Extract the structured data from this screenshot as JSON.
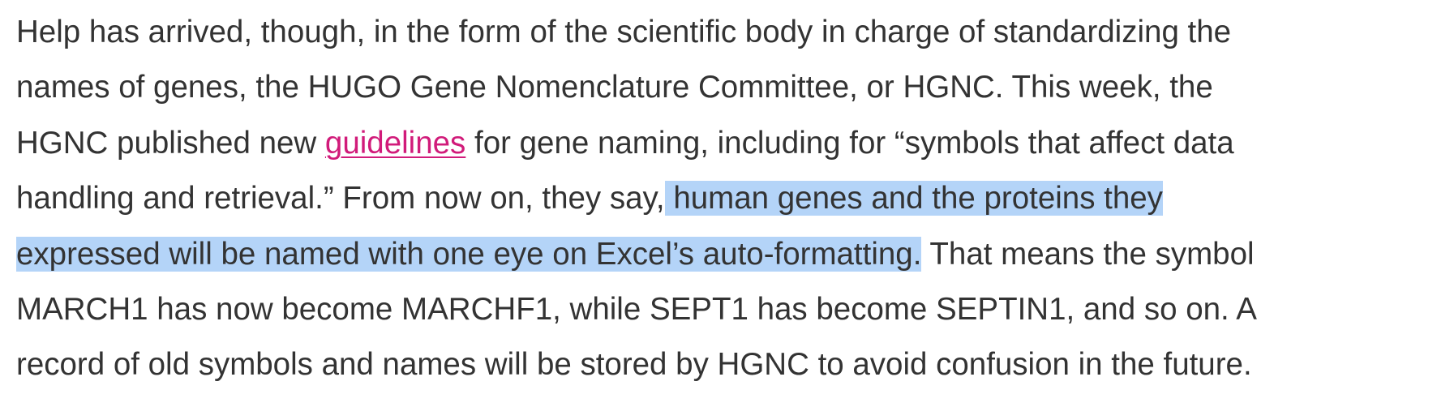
{
  "paragraph": {
    "line1": "Help has arrived, though, in the form of the scientific body in charge of standardizing the",
    "line2": "names of genes, the HUGO Gene Nomenclature Committee, or HGNC. This week, the",
    "line3_before": "HGNC published new ",
    "line3_link": "guidelines",
    "line3_after": " for gene naming, including for “symbols that affect data",
    "line4_before": "handling and retrieval.” From now on, they say,",
    "line4_highlight": " human genes and the proteins they ",
    "line5_highlight": "expressed will be named with one eye on Excel’s auto-formatting.",
    "line5_after": " That means the symbol",
    "line6": "MARCH1 has now become MARCHF1, while SEPT1 has become SEPTIN1, and so on. A",
    "line7": "record of old symbols and names will be stored by HGNC to avoid confusion in the future."
  },
  "colors": {
    "text": "#333333",
    "link": "#d11b7a",
    "selection": "#b4d4f8"
  }
}
